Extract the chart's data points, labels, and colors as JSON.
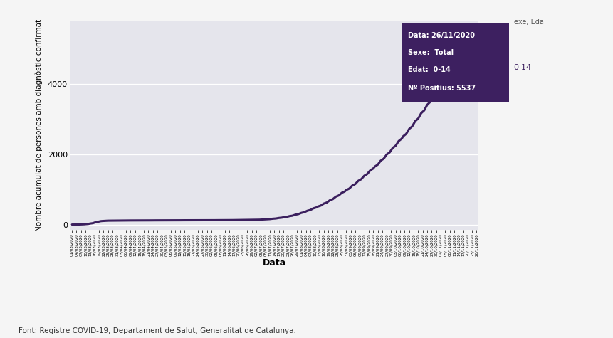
{
  "ylabel": "Nombre acumulat de persones amb diagnòstic confirmat",
  "xlabel": "Data",
  "source": "Font: Registre COVID-19, Departament de Salut, Generalitat de Catalunya.",
  "line_color": "#3b1f5e",
  "bg_color": "#e5e5ec",
  "fig_bg_color": "#f5f5f5",
  "ylim": [
    -150,
    5800
  ],
  "yticks": [
    0,
    2000,
    4000
  ],
  "tooltip_bg": "#3d2060",
  "tooltip_text_color": "#ffffff",
  "tooltip_line1": "Data: 26/11/2020",
  "tooltip_line2": "Sexe:  Total",
  "tooltip_line3": "Edat:  0-14",
  "tooltip_line4": "Nº Positius: 5537",
  "legend_label": "0-14",
  "partial_legend": "exe, Eda",
  "start_date": "2020-03-01",
  "end_date": "2020-11-26",
  "data_points": [
    0,
    0,
    0,
    1,
    2,
    4,
    7,
    11,
    18,
    28,
    40,
    55,
    70,
    85,
    95,
    100,
    105,
    108,
    110,
    111,
    112,
    113,
    113,
    114,
    114,
    115,
    115,
    115,
    116,
    116,
    116,
    116,
    117,
    117,
    117,
    117,
    118,
    118,
    118,
    118,
    119,
    119,
    119,
    119,
    120,
    120,
    120,
    120,
    120,
    121,
    121,
    121,
    121,
    121,
    122,
    122,
    122,
    122,
    122,
    122,
    123,
    123,
    123,
    123,
    123,
    123,
    124,
    124,
    124,
    124,
    124,
    125,
    125,
    125,
    125,
    126,
    126,
    126,
    127,
    127,
    128,
    128,
    129,
    129,
    130,
    130,
    131,
    132,
    133,
    134,
    135,
    136,
    138,
    140,
    143,
    146,
    150,
    155,
    160,
    166,
    172,
    179,
    187,
    196,
    205,
    215,
    226,
    238,
    251,
    265,
    280,
    296,
    313,
    331,
    350,
    370,
    391,
    413,
    436,
    460,
    485,
    511,
    538,
    566,
    595,
    625,
    656,
    688,
    721,
    755,
    790,
    826,
    863,
    901,
    940,
    980,
    1021,
    1063,
    1106,
    1150,
    1195,
    1241,
    1288,
    1336,
    1385,
    1435,
    1486,
    1538,
    1591,
    1645,
    1700,
    1756,
    1813,
    1871,
    1930,
    1990,
    2051,
    2113,
    2176,
    2240,
    2305,
    2371,
    2438,
    2506,
    2575,
    2645,
    2716,
    2788,
    2861,
    2935,
    3010,
    3086,
    3163,
    3241,
    3320,
    3400,
    3481,
    3563,
    3646,
    3730,
    3815,
    3901,
    3988,
    4076,
    4165,
    4255,
    4346,
    4438,
    4531,
    4625,
    4720,
    4816,
    4913,
    5011,
    5110,
    5210,
    5311,
    5413,
    5480,
    5537
  ]
}
